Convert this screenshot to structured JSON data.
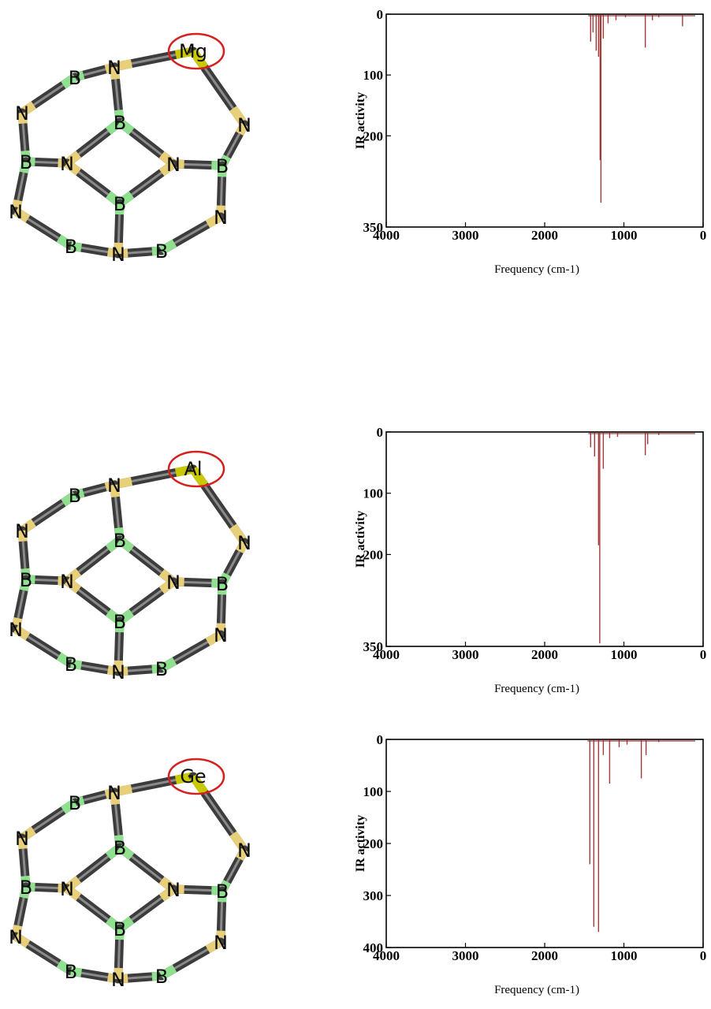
{
  "panels": [
    {
      "highlight_atom": "Mg",
      "chart_data": {
        "type": "line",
        "xlabel": "Frequency (cm-1)",
        "ylabel": "IR activity",
        "xlim": [
          4000,
          0
        ],
        "ylim": [
          0,
          350
        ],
        "y_inverted": true,
        "xticks": [
          "4000",
          "3000",
          "2000",
          "1000",
          "0"
        ],
        "yticks": [
          "0",
          "100",
          "200",
          "350"
        ],
        "ytick_values": [
          0,
          100,
          200,
          350
        ],
        "color": "#a33a3a",
        "peaks": [
          [
            1420,
            45
          ],
          [
            1390,
            30
          ],
          [
            1350,
            60
          ],
          [
            1320,
            70
          ],
          [
            1300,
            240
          ],
          [
            1290,
            310
          ],
          [
            1260,
            40
          ],
          [
            1200,
            15
          ],
          [
            1100,
            10
          ],
          [
            980,
            5
          ],
          [
            730,
            55
          ],
          [
            640,
            10
          ],
          [
            560,
            5
          ],
          [
            260,
            20
          ]
        ]
      }
    },
    {
      "highlight_atom": "Al",
      "chart_data": {
        "type": "line",
        "xlabel": "Frequency (cm-1)",
        "ylabel": "IR activity",
        "xlim": [
          4000,
          0
        ],
        "ylim": [
          0,
          350
        ],
        "y_inverted": true,
        "xticks": [
          "4000",
          "3000",
          "2000",
          "1000",
          "0"
        ],
        "yticks": [
          "0",
          "100",
          "200",
          "350"
        ],
        "ytick_values": [
          0,
          100,
          200,
          350
        ],
        "color": "#a33a3a",
        "peaks": [
          [
            1420,
            25
          ],
          [
            1370,
            40
          ],
          [
            1320,
            185
          ],
          [
            1305,
            345
          ],
          [
            1260,
            60
          ],
          [
            1180,
            10
          ],
          [
            1080,
            8
          ],
          [
            730,
            38
          ],
          [
            700,
            20
          ],
          [
            560,
            5
          ]
        ]
      }
    },
    {
      "highlight_atom": "Ge",
      "chart_data": {
        "type": "line",
        "xlabel": "Frequency (cm-1)",
        "ylabel": "IR activity",
        "xlim": [
          4000,
          0
        ],
        "ylim": [
          0,
          400
        ],
        "y_inverted": true,
        "xticks": [
          "4000",
          "3000",
          "2000",
          "1000",
          "0"
        ],
        "yticks": [
          "0",
          "100",
          "200",
          "300",
          "400"
        ],
        "ytick_values": [
          0,
          100,
          200,
          300,
          400
        ],
        "color": "#a33a3a",
        "peaks": [
          [
            1430,
            240
          ],
          [
            1380,
            360
          ],
          [
            1320,
            370
          ],
          [
            1260,
            30
          ],
          [
            1180,
            85
          ],
          [
            1060,
            15
          ],
          [
            960,
            10
          ],
          [
            780,
            75
          ],
          [
            720,
            30
          ],
          [
            560,
            5
          ]
        ]
      }
    }
  ],
  "atom_labels": {
    "boron": "B",
    "nitrogen": "N"
  }
}
